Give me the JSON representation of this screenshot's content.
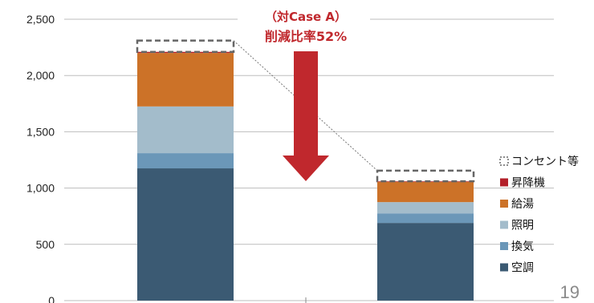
{
  "chart_data": {
    "type": "bar",
    "stacked": true,
    "categories": [
      "",
      ""
    ],
    "ylim": [
      0,
      2500
    ],
    "yticks": [
      0,
      500,
      1000,
      1500,
      2000,
      2500
    ],
    "ytick_labels": [
      "0",
      "500",
      "1,000",
      "1,500",
      "2,000",
      "2,500"
    ],
    "grid": true,
    "legend_position": "right",
    "series": [
      {
        "name": "空調",
        "color": "#3b5a73",
        "values": [
          1175,
          690
        ]
      },
      {
        "name": "換気",
        "color": "#6b97b8",
        "values": [
          135,
          85
        ]
      },
      {
        "name": "照明",
        "color": "#a3bccb",
        "values": [
          415,
          100
        ]
      },
      {
        "name": "給湯",
        "color": "#cc7228",
        "values": [
          475,
          180
        ]
      },
      {
        "name": "昇降機",
        "color": "#b3202a",
        "values": [
          10,
          5
        ]
      },
      {
        "name": "コンセント等",
        "color": "#ffffff",
        "border": "#666666",
        "dashed": true,
        "values": [
          100,
          95
        ]
      }
    ],
    "annotation": {
      "line1": "（対Case A）",
      "line2": "削減比率52%",
      "color": "#c0282d"
    }
  },
  "page": {
    "slide_number": "19"
  }
}
